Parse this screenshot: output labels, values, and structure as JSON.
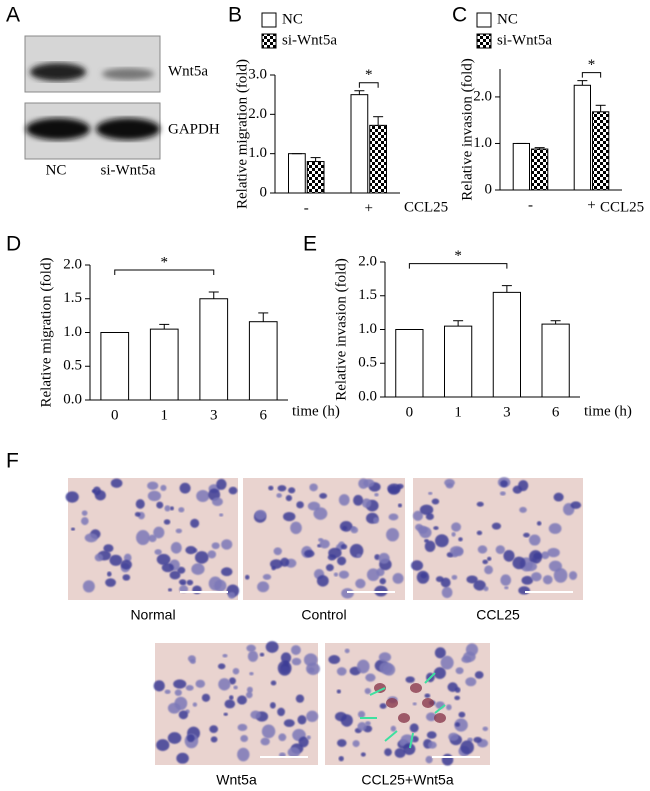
{
  "panel_letters": [
    "A",
    "B",
    "C",
    "D",
    "E",
    "F"
  ],
  "blot": {
    "bands": [
      "Wnt5a",
      "GAPDH"
    ],
    "lanes": [
      "NC",
      "si-Wnt5a"
    ]
  },
  "histology": {
    "labels": [
      "Normal",
      "Control",
      "CCL25",
      "Wnt5a",
      "CCL25+Wnt5a"
    ]
  },
  "chart_data": [
    {
      "type": "bar",
      "y_label": "Relative migration (fold)",
      "x_label": "CCL25",
      "categories": [
        "-",
        "+"
      ],
      "series": [
        {
          "name": "NC",
          "color": "#ffffff",
          "values": [
            1.0,
            2.5
          ],
          "errors": [
            0,
            0.1
          ]
        },
        {
          "name": "si-Wnt5a",
          "color": "#000000",
          "pattern": "checkerboard",
          "values": [
            0.8,
            1.72
          ],
          "errors": [
            0.1,
            0.22
          ]
        }
      ],
      "ylim": [
        0,
        3
      ],
      "yticks": [
        0,
        {
          "value": 1,
          "label": "1.0"
        },
        {
          "value": 2,
          "label": "2.0"
        },
        {
          "value": 3,
          "label": "3.0"
        }
      ],
      "annotation": "*"
    },
    {
      "type": "bar",
      "y_label": "Relative invasion (fold)",
      "x_label": "CCL25",
      "categories": [
        "-",
        "+"
      ],
      "series": [
        {
          "name": "NC",
          "color": "#ffffff",
          "values": [
            1.0,
            2.25
          ],
          "errors": [
            0,
            0.1
          ]
        },
        {
          "name": "si-Wnt5a",
          "color": "#000000",
          "pattern": "checkerboard",
          "values": [
            0.88,
            1.68
          ],
          "errors": [
            0.03,
            0.14
          ]
        }
      ],
      "ylim": [
        0,
        2.6
      ],
      "yticks": [
        0,
        {
          "value": 1,
          "label": "1.0"
        },
        {
          "value": 2,
          "label": "2.0"
        }
      ],
      "annotation": "*"
    },
    {
      "type": "bar",
      "y_label": "Relative migration (fold)",
      "x_label": "time (h)",
      "categories": [
        "0",
        "1",
        "3",
        "6"
      ],
      "color": "#ffffff",
      "values": [
        1.0,
        1.05,
        1.5,
        1.16
      ],
      "errors": [
        0,
        0.07,
        0.1,
        0.13
      ],
      "ylim": [
        0,
        2
      ],
      "yticks": [
        {
          "value": 0,
          "label": "0.0"
        },
        0.5,
        {
          "value": 1,
          "label": "1.0"
        },
        1.5,
        {
          "value": 2,
          "label": "2.0"
        }
      ],
      "annotation": "*"
    },
    {
      "type": "bar",
      "y_label": "Relative invasion (fold)",
      "x_label": "time (h)",
      "categories": [
        "0",
        "1",
        "3",
        "6"
      ],
      "color": "#ffffff",
      "values": [
        1.0,
        1.05,
        1.55,
        1.08
      ],
      "errors": [
        0,
        0.08,
        0.1,
        0.05
      ],
      "ylim": [
        0,
        2
      ],
      "yticks": [
        {
          "value": 0,
          "label": "0.0"
        },
        0.5,
        {
          "value": 1,
          "label": "1.0"
        },
        1.5,
        {
          "value": 2,
          "label": "2.0"
        }
      ],
      "annotation": "*"
    }
  ]
}
